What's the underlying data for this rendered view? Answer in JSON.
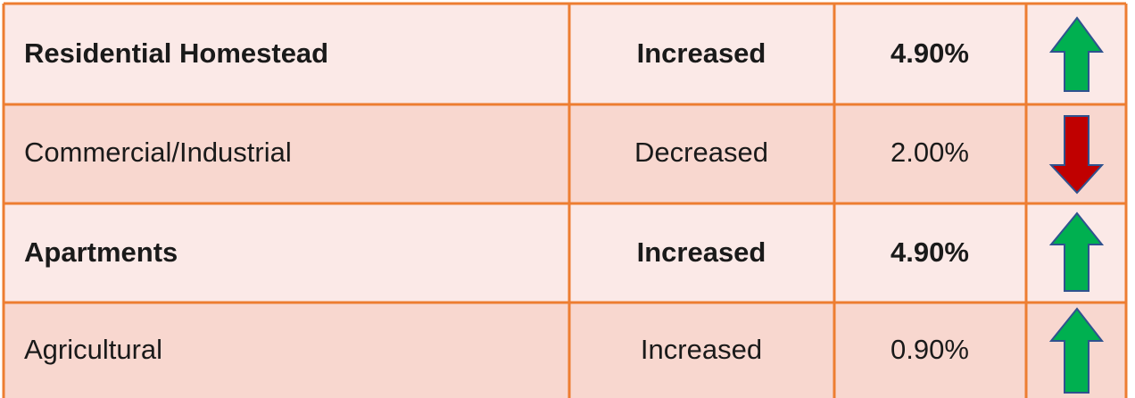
{
  "table": {
    "rows": [
      [
        "Residential Homestead",
        "Increased",
        "4.90%"
      ],
      [
        "Commercial/Industrial",
        "Decreased",
        "2.00%"
      ],
      [
        "Apartments",
        "Increased",
        "4.90%"
      ],
      [
        "Agricultural",
        "Increased",
        "0.90%"
      ]
    ]
  }
}
